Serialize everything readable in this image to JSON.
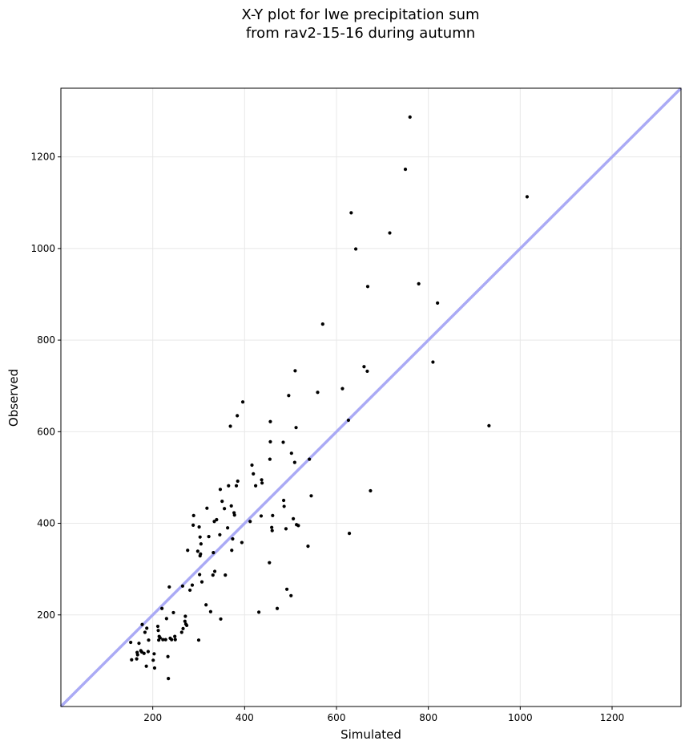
{
  "chart_data": {
    "type": "scatter",
    "title_lines": [
      "X-Y plot for lwe precipitation sum",
      "from rav2-15-16 during autumn"
    ],
    "xlabel": "Simulated",
    "ylabel": "Observed",
    "xlim": [
      0,
      1350
    ],
    "ylim": [
      0,
      1350
    ],
    "xticks": [
      200,
      400,
      600,
      800,
      1000,
      1200
    ],
    "yticks": [
      200,
      400,
      600,
      800,
      1000,
      1200
    ],
    "grid": true,
    "reference_line": {
      "label": "1:1",
      "color": "#aaaaf5"
    },
    "point_color": "#000000",
    "points": [
      [
        152,
        140
      ],
      [
        154,
        102
      ],
      [
        165,
        104
      ],
      [
        166,
        118
      ],
      [
        167,
        113
      ],
      [
        170,
        138
      ],
      [
        174,
        122
      ],
      [
        176,
        119
      ],
      [
        177,
        179
      ],
      [
        181,
        116
      ],
      [
        183,
        162
      ],
      [
        186,
        88
      ],
      [
        187,
        171
      ],
      [
        190,
        120
      ],
      [
        191,
        145
      ],
      [
        201,
        101
      ],
      [
        203,
        115
      ],
      [
        204,
        84
      ],
      [
        211,
        175
      ],
      [
        212,
        166
      ],
      [
        213,
        145
      ],
      [
        214,
        153
      ],
      [
        216,
        150
      ],
      [
        220,
        214
      ],
      [
        222,
        146
      ],
      [
        228,
        146
      ],
      [
        230,
        192
      ],
      [
        233,
        109
      ],
      [
        234,
        61
      ],
      [
        236,
        261
      ],
      [
        238,
        149
      ],
      [
        241,
        146
      ],
      [
        245,
        205
      ],
      [
        248,
        153
      ],
      [
        249,
        146
      ],
      [
        263,
        162
      ],
      [
        265,
        263
      ],
      [
        266,
        170
      ],
      [
        270,
        186
      ],
      [
        271,
        197
      ],
      [
        272,
        180
      ],
      [
        274,
        177
      ],
      [
        276,
        341
      ],
      [
        281,
        254
      ],
      [
        286,
        265
      ],
      [
        288,
        396
      ],
      [
        289,
        417
      ],
      [
        298,
        339
      ],
      [
        300,
        145
      ],
      [
        301,
        392
      ],
      [
        302,
        288
      ],
      [
        303,
        370
      ],
      [
        303,
        329
      ],
      [
        304,
        333
      ],
      [
        305,
        355
      ],
      [
        307,
        272
      ],
      [
        316,
        222
      ],
      [
        318,
        433
      ],
      [
        322,
        371
      ],
      [
        326,
        207
      ],
      [
        331,
        287
      ],
      [
        332,
        336
      ],
      [
        334,
        404
      ],
      [
        335,
        295
      ],
      [
        339,
        408
      ],
      [
        346,
        375
      ],
      [
        347,
        474
      ],
      [
        348,
        191
      ],
      [
        351,
        448
      ],
      [
        356,
        432
      ],
      [
        358,
        287
      ],
      [
        363,
        390
      ],
      [
        365,
        482
      ],
      [
        369,
        612
      ],
      [
        371,
        438
      ],
      [
        372,
        341
      ],
      [
        374,
        366
      ],
      [
        377,
        423
      ],
      [
        378,
        418
      ],
      [
        382,
        482
      ],
      [
        384,
        635
      ],
      [
        385,
        492
      ],
      [
        394,
        358
      ],
      [
        396,
        665
      ],
      [
        412,
        404
      ],
      [
        416,
        527
      ],
      [
        419,
        508
      ],
      [
        424,
        482
      ],
      [
        431,
        206
      ],
      [
        436,
        416
      ],
      [
        437,
        495
      ],
      [
        438,
        488
      ],
      [
        454,
        314
      ],
      [
        455,
        540
      ],
      [
        456,
        578
      ],
      [
        456,
        622
      ],
      [
        459,
        391
      ],
      [
        460,
        384
      ],
      [
        461,
        417
      ],
      [
        471,
        214
      ],
      [
        484,
        577
      ],
      [
        485,
        450
      ],
      [
        486,
        437
      ],
      [
        490,
        388
      ],
      [
        492,
        256
      ],
      [
        496,
        679
      ],
      [
        501,
        242
      ],
      [
        502,
        553
      ],
      [
        506,
        410
      ],
      [
        509,
        533
      ],
      [
        510,
        733
      ],
      [
        512,
        609
      ],
      [
        513,
        397
      ],
      [
        517,
        395
      ],
      [
        538,
        350
      ],
      [
        541,
        540
      ],
      [
        545,
        460
      ],
      [
        559,
        686
      ],
      [
        570,
        835
      ],
      [
        613,
        694
      ],
      [
        626,
        625
      ],
      [
        628,
        378
      ],
      [
        632,
        1078
      ],
      [
        642,
        999
      ],
      [
        660,
        742
      ],
      [
        667,
        732
      ],
      [
        668,
        917
      ],
      [
        674,
        471
      ],
      [
        716,
        1034
      ],
      [
        750,
        1173
      ],
      [
        760,
        1287
      ],
      [
        779,
        923
      ],
      [
        810,
        752
      ],
      [
        820,
        881
      ],
      [
        932,
        613
      ],
      [
        1015,
        1113
      ]
    ]
  }
}
